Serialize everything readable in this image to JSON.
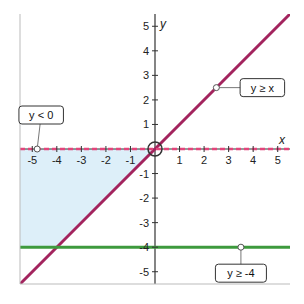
{
  "chart_data": {
    "type": "line",
    "x_label": "x",
    "y_label": "y",
    "xlim": [
      -5.5,
      5.5
    ],
    "ylim": [
      -5.5,
      5.5
    ],
    "xticks": [
      -5,
      -4,
      -3,
      -2,
      -1,
      1,
      2,
      3,
      4,
      5
    ],
    "yticks": [
      -5,
      -4,
      -3,
      -2,
      -1,
      1,
      2,
      3,
      4,
      5
    ],
    "grid": false,
    "x": [
      -5.5,
      5.5
    ],
    "series": [
      {
        "name": "y ≥ x",
        "color": "#a3245e",
        "line_style": "solid",
        "values": [
          -5.5,
          5.5
        ]
      },
      {
        "name": "y < 0",
        "color": "#e2457b",
        "line_style": "dashed",
        "values": [
          0,
          0
        ]
      },
      {
        "name": "y ≥ -4",
        "color": "#3d9a3d",
        "line_style": "solid",
        "values": [
          -4,
          -4
        ]
      }
    ],
    "shaded_region": {
      "color": "#d4ebf7",
      "x": [
        -5.5,
        -4,
        0
      ],
      "low": [
        -4,
        -4,
        0
      ],
      "high": [
        0,
        0,
        0
      ]
    },
    "annotations": [
      {
        "text": "y < 0",
        "x": -4.8,
        "y": 0
      },
      {
        "text": "y ≥ x",
        "x": 2.5,
        "y": 2.5
      },
      {
        "text": "y ≥ -4",
        "x": 3.5,
        "y": -4
      }
    ]
  }
}
